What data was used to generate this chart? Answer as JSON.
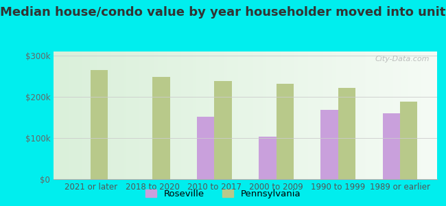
{
  "title": "Median house/condo value by year householder moved into unit",
  "categories": [
    "2021 or later",
    "2018 to 2020",
    "2010 to 2017",
    "2000 to 2009",
    "1990 to 1999",
    "1989 or earlier"
  ],
  "roseville_values": [
    null,
    null,
    152000,
    103000,
    168000,
    160000
  ],
  "pennsylvania_values": [
    265000,
    248000,
    238000,
    232000,
    222000,
    188000
  ],
  "roseville_color": "#c9a0dc",
  "pennsylvania_color": "#b8c98a",
  "background_color": "#00eeee",
  "plot_bg_left": "#daf0da",
  "plot_bg_right": "#f5fbf5",
  "ylabel_ticks": [
    "$0",
    "$100k",
    "$200k",
    "$300k"
  ],
  "ytick_values": [
    0,
    100000,
    200000,
    300000
  ],
  "ylim": [
    0,
    310000
  ],
  "legend_labels": [
    "Roseville",
    "Pennsylvania"
  ],
  "watermark": "City-Data.com",
  "title_fontsize": 13,
  "tick_fontsize": 8.5,
  "legend_fontsize": 9.5,
  "bar_width": 0.28
}
